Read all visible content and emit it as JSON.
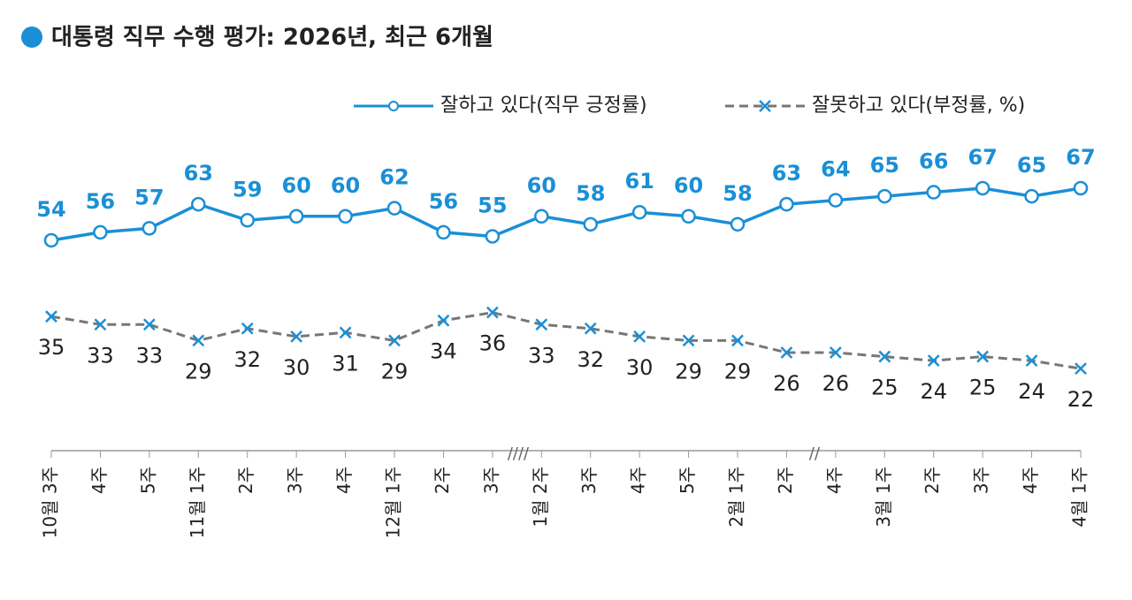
{
  "chart_data": {
    "type": "line",
    "title": "대통령 직무 수행 평가: 2026년, 최근 6개월",
    "categories": [
      "10월 3주",
      "4주",
      "5주",
      "11월 1주",
      "2주",
      "3주",
      "4주",
      "12월 1주",
      "2주",
      "3주",
      "1월 2주",
      "3주",
      "4주",
      "5주",
      "2월 1주",
      "2주",
      "4주",
      "3월 1주",
      "2주",
      "3주",
      "4주",
      "4월 1주"
    ],
    "series": [
      {
        "name": "잘하고 있다(직무 긍정률)",
        "color": "#1a8fd6",
        "values": [
          54,
          56,
          57,
          63,
          59,
          60,
          60,
          62,
          56,
          55,
          60,
          58,
          61,
          60,
          58,
          63,
          64,
          65,
          66,
          67,
          65,
          67
        ]
      },
      {
        "name": "잘못하고 있다(부정률, %)",
        "color": "#777777",
        "values": [
          35,
          33,
          33,
          29,
          32,
          30,
          31,
          29,
          34,
          36,
          33,
          32,
          30,
          29,
          29,
          26,
          26,
          25,
          24,
          25,
          24,
          22
        ]
      }
    ],
    "ylim": [
      0,
      80
    ]
  }
}
